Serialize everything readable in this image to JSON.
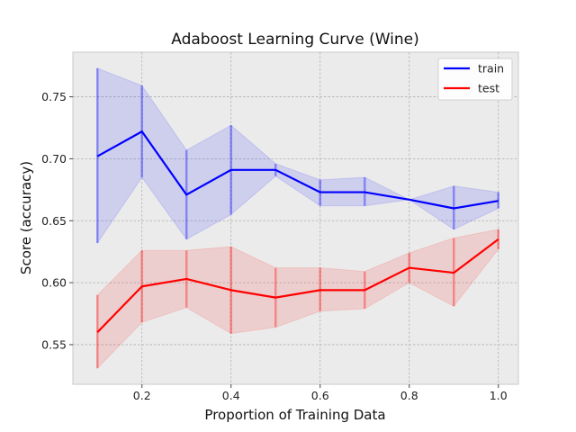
{
  "chart_data": {
    "type": "line",
    "title": "Adaboost Learning Curve (Wine)",
    "xlabel": "Proportion of Training Data",
    "ylabel": "Score (accuracy)",
    "xlim": [
      0.045,
      1.045
    ],
    "ylim": [
      0.518,
      0.786
    ],
    "x_ticks": [
      0.2,
      0.4,
      0.6,
      0.8,
      1.0
    ],
    "x_tick_labels": [
      "0.2",
      "0.4",
      "0.6",
      "0.8",
      "1.0"
    ],
    "y_ticks": [
      0.55,
      0.6,
      0.65,
      0.7,
      0.75
    ],
    "y_tick_labels": [
      "0.55",
      "0.60",
      "0.65",
      "0.70",
      "0.75"
    ],
    "grid": true,
    "legend_position": "top-right",
    "x": [
      0.1,
      0.2,
      0.3,
      0.4,
      0.5,
      0.6,
      0.7,
      0.8,
      0.9,
      1.0
    ],
    "series": [
      {
        "name": "train",
        "color": "#0000ff",
        "values": [
          0.702,
          0.722,
          0.671,
          0.691,
          0.691,
          0.673,
          0.673,
          0.667,
          0.66,
          0.666
        ],
        "lower": [
          0.632,
          0.685,
          0.635,
          0.655,
          0.686,
          0.662,
          0.662,
          0.667,
          0.643,
          0.66
        ],
        "upper": [
          0.773,
          0.759,
          0.707,
          0.727,
          0.696,
          0.683,
          0.685,
          0.667,
          0.678,
          0.673
        ]
      },
      {
        "name": "test",
        "color": "#ff0000",
        "values": [
          0.56,
          0.597,
          0.603,
          0.594,
          0.588,
          0.594,
          0.594,
          0.612,
          0.608,
          0.635
        ],
        "lower": [
          0.531,
          0.568,
          0.58,
          0.559,
          0.564,
          0.577,
          0.579,
          0.6,
          0.581,
          0.627
        ],
        "upper": [
          0.59,
          0.626,
          0.626,
          0.629,
          0.612,
          0.612,
          0.609,
          0.624,
          0.636,
          0.643
        ]
      }
    ]
  }
}
